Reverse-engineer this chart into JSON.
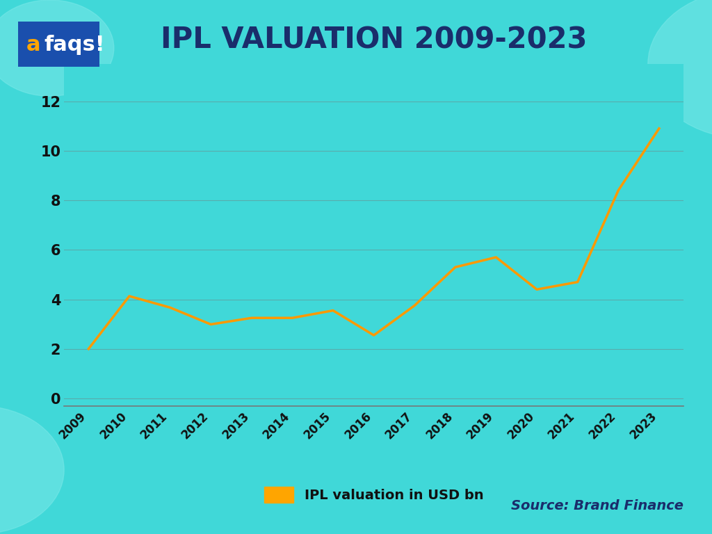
{
  "title": "IPL VALUATION 2009-2023",
  "title_color": "#1a2d6b",
  "title_fontsize": 30,
  "title_fontweight": "bold",
  "background_color": "#40d8d8",
  "plot_bg_color": "#40d8d8",
  "years": [
    2009,
    2010,
    2011,
    2012,
    2013,
    2014,
    2015,
    2016,
    2017,
    2018,
    2019,
    2020,
    2021,
    2022,
    2023
  ],
  "values": [
    2.0,
    4.13,
    3.67,
    2.99,
    3.25,
    3.25,
    3.55,
    2.55,
    3.75,
    5.3,
    5.7,
    4.4,
    4.7,
    8.4,
    10.9
  ],
  "line_color": "#FF9900",
  "line_width": 2.5,
  "yticks": [
    0,
    2,
    4,
    6,
    8,
    10,
    12
  ],
  "ylim": [
    -0.3,
    13.5
  ],
  "xlim": [
    2008.4,
    2023.6
  ],
  "grid_color": "#777777",
  "grid_alpha": 0.45,
  "legend_label": "IPL valuation in USD bn",
  "legend_patch_color": "#FFA500",
  "source_text": "Source: Brand Finance",
  "source_color": "#1a2d6b",
  "source_fontsize": 14,
  "tick_label_color": "#111111",
  "tick_fontsize": 12,
  "axis_color": "#777777",
  "circle_color": "#7ae8e8",
  "circle_alpha": 0.55,
  "figsize": [
    10.24,
    7.68
  ],
  "dpi": 100,
  "logo_bg_color": "#1a4fad",
  "logo_text_a_color": "#FFA500",
  "logo_text_rest_color": "#ffffff"
}
